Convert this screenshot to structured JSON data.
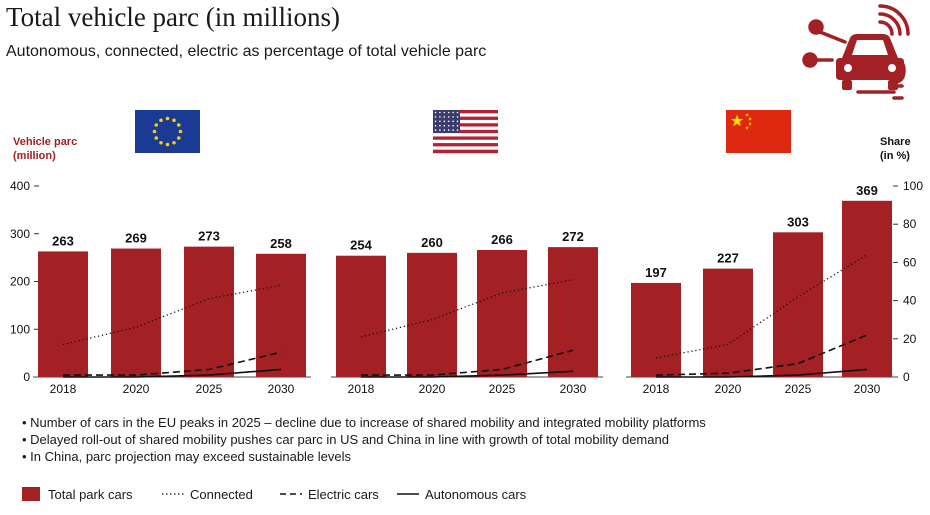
{
  "header": {
    "title": "Total vehicle parc (in millions)",
    "subtitle": "Autonomous, connected, electric as percentage of total vehicle parc"
  },
  "bullets": [
    "Number of cars in the EU peaks in 2025 – decline due to increase of shared mobility and integrated mobility platforms",
    "Delayed roll-out of shared mobility pushes car parc in US and China in line with growth of total mobility demand",
    "In China, parc projection may exceed sustainable levels"
  ],
  "legend": {
    "bars": "Total park cars",
    "connected": "Connected",
    "electric": "Electric cars",
    "autonomous": "Autonomous cars"
  },
  "icons": {
    "logo": "connected-electric-car-icon",
    "flags": [
      "eu-flag-icon",
      "us-flag-icon",
      "china-flag-icon"
    ]
  },
  "colors": {
    "bar": "#a32025",
    "accent_text": "#a32025",
    "line": "#111111"
  },
  "chart_data": {
    "type": "bar",
    "left_axis": {
      "label_line1": "Vehicle parc",
      "label_line2": "(million)",
      "ticks": [
        0,
        100,
        200,
        300,
        400
      ],
      "range": [
        0,
        400
      ]
    },
    "right_axis": {
      "label_line1": "Share",
      "label_line2": "(in %)",
      "ticks": [
        0,
        20,
        40,
        60,
        80,
        100
      ],
      "range": [
        0,
        100
      ]
    },
    "grid": false,
    "panels": [
      {
        "region": "EU",
        "categories": [
          "2018",
          "2020",
          "2025",
          "2030"
        ],
        "values": [
          263,
          269,
          273,
          258
        ],
        "series": [
          {
            "name": "Connected",
            "style": "dotted",
            "values": [
              17,
              26,
              41,
              48
            ]
          },
          {
            "name": "Electric cars",
            "style": "dashed",
            "values": [
              1,
              1,
              4,
              13
            ]
          },
          {
            "name": "Autonomous cars",
            "style": "solid",
            "values": [
              0,
              0,
              1,
              4
            ]
          }
        ]
      },
      {
        "region": "US",
        "categories": [
          "2018",
          "2020",
          "2025",
          "2030"
        ],
        "values": [
          254,
          260,
          266,
          272
        ],
        "series": [
          {
            "name": "Connected",
            "style": "dotted",
            "values": [
              21,
              30,
              44,
              51
            ]
          },
          {
            "name": "Electric cars",
            "style": "dashed",
            "values": [
              1,
              1,
              4,
              14
            ]
          },
          {
            "name": "Autonomous cars",
            "style": "solid",
            "values": [
              0,
              0,
              1,
              3
            ]
          }
        ]
      },
      {
        "region": "China",
        "categories": [
          "2018",
          "2020",
          "2025",
          "2030"
        ],
        "values": [
          197,
          227,
          303,
          369
        ],
        "series": [
          {
            "name": "Connected",
            "style": "dotted",
            "values": [
              10,
              17,
              42,
              64
            ]
          },
          {
            "name": "Electric cars",
            "style": "dashed",
            "values": [
              1,
              2,
              7,
              22
            ]
          },
          {
            "name": "Autonomous cars",
            "style": "solid",
            "values": [
              0,
              0,
              1,
              4
            ]
          }
        ]
      }
    ]
  }
}
